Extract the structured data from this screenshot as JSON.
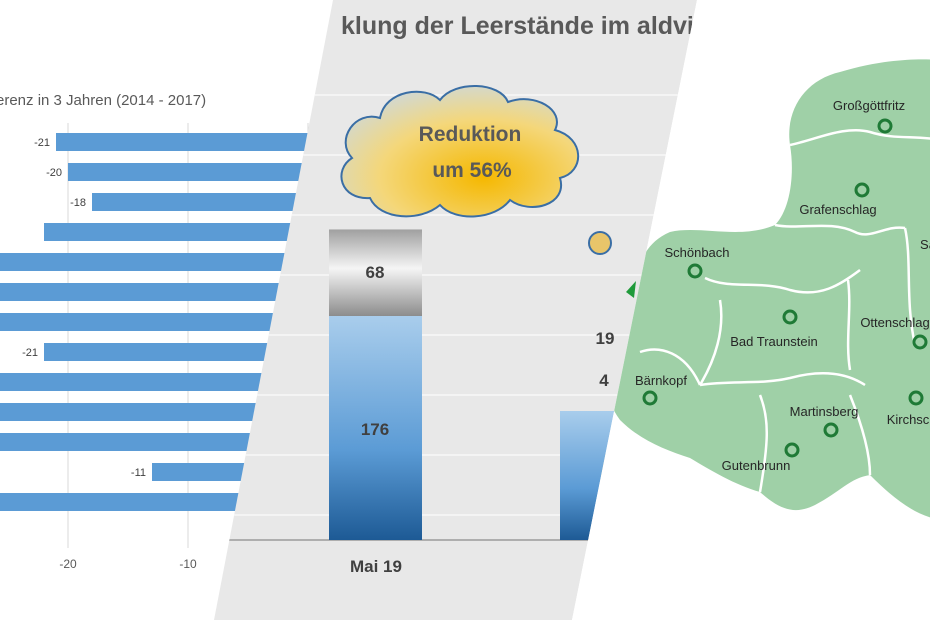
{
  "colors": {
    "bar_blue": "#5b9bd5",
    "panel_gray": "#e8e8e8",
    "map_green": "#9fd0a7",
    "map_border": "#ffffff",
    "marker": "#1f7a36",
    "cloud_yellow": "#f5c518"
  },
  "chart_data": [
    {
      "type": "bar",
      "orientation": "horizontal",
      "title": "erenz in 3 Jahren (2014 - 2017)",
      "values": [
        -21,
        -20,
        -18,
        null,
        null,
        null,
        null,
        -21,
        null,
        null,
        null,
        -11,
        null
      ],
      "labels": [
        "-21",
        "-20",
        "-18",
        "",
        "",
        "",
        "",
        "-21",
        "",
        "",
        "",
        "-11",
        ""
      ],
      "xticks": [
        "-20",
        "-10"
      ],
      "grid": true
    },
    {
      "type": "bar",
      "stacked": true,
      "title": "klung der Leerstände im aldviertler Kernland",
      "categories": [
        "Mai 19",
        ""
      ],
      "series": [
        {
          "values": [
            176,
            null
          ]
        },
        {
          "values": [
            68,
            4
          ]
        },
        {
          "values": [
            null,
            19
          ]
        }
      ],
      "segment_labels": [
        [
          "176",
          "68"
        ],
        [
          "4",
          "19"
        ]
      ],
      "annotation": [
        "Reduktion",
        "um 56%"
      ]
    }
  ],
  "map": {
    "places": [
      "Großgöttfritz",
      "Grafenschlag",
      "Schönbach",
      "Bad Traunstein",
      "Ottenschlag",
      "Bärnkopf",
      "Martinsberg",
      "Gutenbrunn",
      "Kirchsc",
      "Sa"
    ]
  }
}
